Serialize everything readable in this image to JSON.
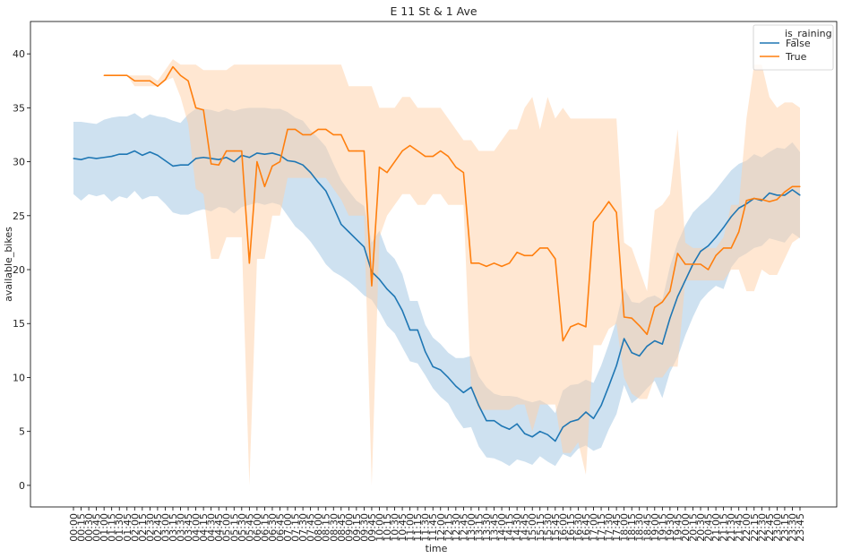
{
  "chart_data": {
    "type": "line",
    "title": "E 11 St & 1 Ave",
    "xlabel": "time",
    "ylabel": "available_bikes",
    "ylim": [
      -2,
      43
    ],
    "y_ticks": [
      0,
      5,
      10,
      15,
      20,
      25,
      30,
      35,
      40
    ],
    "grid": false,
    "legend_title": "is_raining",
    "legend_position": "top-right",
    "categories": [
      "00:00",
      "00:15",
      "00:30",
      "00:45",
      "01:00",
      "01:15",
      "01:30",
      "01:45",
      "02:00",
      "02:15",
      "02:30",
      "02:45",
      "03:00",
      "03:15",
      "03:30",
      "03:45",
      "04:00",
      "04:15",
      "04:30",
      "04:45",
      "05:00",
      "05:15",
      "05:30",
      "05:45",
      "06:00",
      "06:15",
      "06:30",
      "06:45",
      "07:00",
      "07:15",
      "07:30",
      "07:45",
      "08:00",
      "08:15",
      "08:30",
      "08:45",
      "09:00",
      "09:15",
      "09:30",
      "09:45",
      "10:00",
      "10:15",
      "10:30",
      "10:45",
      "11:00",
      "11:15",
      "11:30",
      "11:45",
      "12:00",
      "12:15",
      "12:30",
      "12:45",
      "13:00",
      "13:15",
      "13:30",
      "13:45",
      "14:00",
      "14:15",
      "14:30",
      "14:45",
      "15:00",
      "15:15",
      "15:30",
      "15:45",
      "16:00",
      "16:15",
      "16:30",
      "16:45",
      "17:00",
      "17:15",
      "17:30",
      "17:45",
      "18:00",
      "18:15",
      "18:30",
      "18:45",
      "19:00",
      "19:15",
      "19:30",
      "19:45",
      "20:00",
      "20:15",
      "20:30",
      "20:45",
      "21:00",
      "21:15",
      "21:30",
      "21:45",
      "22:00",
      "22:15",
      "22:30",
      "22:45",
      "23:00",
      "23:15",
      "23:30",
      "23:45"
    ],
    "series": [
      {
        "name": "False",
        "color": "#1f77b4",
        "band_color": "#a6c8e3",
        "values": [
          30.3,
          30.2,
          30.4,
          30.3,
          30.4,
          30.5,
          30.7,
          30.7,
          31.0,
          30.6,
          30.9,
          30.6,
          30.1,
          29.6,
          29.7,
          29.7,
          30.3,
          30.4,
          30.3,
          30.2,
          30.4,
          30.0,
          30.6,
          30.4,
          30.8,
          30.7,
          30.8,
          30.6,
          30.1,
          30.0,
          29.7,
          29.0,
          28.1,
          27.3,
          25.8,
          24.2,
          23.5,
          22.8,
          22.1,
          19.8,
          19.1,
          18.2,
          17.5,
          16.2,
          14.4,
          14.4,
          12.4,
          11.0,
          10.7,
          10.0,
          9.2,
          8.6,
          9.1,
          7.4,
          6.0,
          6.0,
          5.5,
          5.2,
          5.7,
          4.8,
          4.5,
          5.0,
          4.7,
          4.1,
          5.4,
          5.9,
          6.1,
          6.8,
          6.2,
          7.4,
          9.2,
          11.1,
          13.6,
          12.3,
          12.0,
          12.9,
          13.4,
          13.1,
          15.5,
          17.5,
          19.0,
          20.5,
          21.7,
          22.2,
          23.0,
          23.9,
          24.9,
          25.7,
          26.1,
          26.6,
          26.4,
          27.1,
          26.9,
          26.9,
          27.4,
          26.9
        ],
        "lower": [
          27.0,
          26.4,
          27.0,
          26.8,
          27.0,
          26.3,
          26.8,
          26.6,
          27.3,
          26.5,
          26.8,
          26.8,
          26.1,
          25.3,
          25.1,
          25.1,
          25.4,
          25.6,
          25.4,
          25.8,
          25.7,
          25.2,
          25.8,
          26.0,
          26.2,
          26.0,
          26.2,
          26.0,
          25.0,
          24.0,
          23.4,
          22.6,
          21.6,
          20.5,
          19.8,
          19.4,
          18.9,
          18.3,
          17.6,
          17.2,
          16.1,
          14.8,
          14.1,
          12.8,
          11.5,
          11.3,
          10.2,
          9.0,
          8.2,
          7.6,
          6.3,
          5.3,
          5.4,
          3.6,
          2.6,
          2.5,
          2.2,
          1.8,
          2.4,
          2.2,
          1.9,
          2.7,
          2.2,
          1.8,
          2.9,
          2.6,
          3.4,
          3.7,
          3.2,
          3.5,
          5.2,
          6.6,
          9.3,
          7.6,
          8.2,
          9.0,
          9.7,
          8.1,
          10.5,
          11.9,
          13.9,
          15.6,
          17.1,
          17.9,
          18.5,
          18.2,
          20.2,
          21.1,
          21.5,
          22.0,
          22.2,
          22.9,
          22.7,
          22.5,
          23.4,
          22.9
        ],
        "upper": [
          33.7,
          33.7,
          33.6,
          33.5,
          33.9,
          34.1,
          34.2,
          34.2,
          34.5,
          34.0,
          34.4,
          34.2,
          34.1,
          33.8,
          33.6,
          34.4,
          34.9,
          34.9,
          34.8,
          34.6,
          34.9,
          34.7,
          34.9,
          35.0,
          35.0,
          35.0,
          34.9,
          34.9,
          34.6,
          34.1,
          33.8,
          32.9,
          32.2,
          31.4,
          29.8,
          28.3,
          27.3,
          26.4,
          25.9,
          22.5,
          23.6,
          21.7,
          21.0,
          19.6,
          17.1,
          17.1,
          14.9,
          13.7,
          13.1,
          12.3,
          11.8,
          11.8,
          12.0,
          10.1,
          9.1,
          8.5,
          8.3,
          8.3,
          8.2,
          7.9,
          7.7,
          7.9,
          7.5,
          6.7,
          8.8,
          9.3,
          9.4,
          9.8,
          9.5,
          11.1,
          13.1,
          15.3,
          18.3,
          17.0,
          16.9,
          17.4,
          17.6,
          17.2,
          20.3,
          22.5,
          24.1,
          25.3,
          26.0,
          26.6,
          27.4,
          28.3,
          29.2,
          29.8,
          30.1,
          30.7,
          30.4,
          30.9,
          31.3,
          31.2,
          31.8,
          30.9
        ]
      },
      {
        "name": "True",
        "color": "#ff7f0e",
        "band_color": "#ffd0a6",
        "values": [
          null,
          null,
          null,
          null,
          38.0,
          38.0,
          38.0,
          38.0,
          37.5,
          37.5,
          37.5,
          37.0,
          37.6,
          38.8,
          38.0,
          37.5,
          35.0,
          34.8,
          29.8,
          29.7,
          31.0,
          31.0,
          31.0,
          20.6,
          30.0,
          27.7,
          29.6,
          30.0,
          33.0,
          33.0,
          32.5,
          32.5,
          33.0,
          33.0,
          32.5,
          32.5,
          31.0,
          31.0,
          31.0,
          18.5,
          29.5,
          29.0,
          30.0,
          31.0,
          31.5,
          31.0,
          30.5,
          30.5,
          31.0,
          30.5,
          29.5,
          29.0,
          20.6,
          20.6,
          20.3,
          20.6,
          20.3,
          20.6,
          21.6,
          21.3,
          21.3,
          22.0,
          22.0,
          21.0,
          13.4,
          14.7,
          15.0,
          14.7,
          24.4,
          25.3,
          26.3,
          25.3,
          15.6,
          15.5,
          14.8,
          14.0,
          16.5,
          17.0,
          18.0,
          21.5,
          20.5,
          20.5,
          20.5,
          20.0,
          21.3,
          22.0,
          22.0,
          23.5,
          26.4,
          26.6,
          26.5,
          26.3,
          26.5,
          27.2,
          27.7,
          27.7
        ],
        "lower": [
          null,
          null,
          null,
          null,
          38.0,
          38.0,
          38.0,
          38.0,
          37.0,
          37.0,
          37.0,
          37.0,
          37.5,
          37.8,
          36.0,
          33.5,
          27.5,
          27.0,
          21.0,
          21.0,
          23.0,
          23.0,
          23.0,
          0.0,
          21.0,
          21.0,
          25.0,
          25.0,
          28.5,
          28.5,
          28.5,
          28.5,
          28.5,
          28.5,
          27.5,
          26.5,
          25.0,
          25.0,
          25.0,
          0.0,
          23.0,
          25.0,
          26.0,
          27.0,
          27.0,
          26.0,
          26.0,
          27.0,
          27.0,
          26.0,
          26.0,
          26.0,
          9.0,
          7.0,
          7.0,
          7.0,
          7.0,
          7.0,
          7.5,
          7.5,
          5.0,
          7.5,
          7.5,
          7.5,
          3.0,
          3.0,
          4.0,
          1.0,
          13.0,
          13.0,
          14.5,
          15.0,
          10.0,
          8.5,
          8.0,
          8.0,
          10.0,
          10.0,
          11.0,
          11.0,
          19.0,
          19.0,
          19.0,
          19.0,
          19.0,
          19.0,
          20.0,
          20.0,
          18.0,
          18.0,
          20.0,
          19.5,
          19.5,
          21.0,
          22.5,
          23.0
        ],
        "upper": [
          null,
          null,
          null,
          null,
          38.0,
          38.0,
          38.0,
          38.0,
          38.0,
          38.0,
          38.0,
          37.5,
          38.5,
          39.5,
          39.0,
          39.0,
          39.0,
          38.5,
          38.5,
          38.5,
          38.5,
          39.0,
          39.0,
          39.0,
          39.0,
          39.0,
          39.0,
          39.0,
          39.0,
          39.0,
          39.0,
          39.0,
          39.0,
          39.0,
          39.0,
          39.0,
          37.0,
          37.0,
          37.0,
          37.0,
          35.0,
          35.0,
          35.0,
          36.0,
          36.0,
          35.0,
          35.0,
          35.0,
          35.0,
          34.0,
          33.0,
          32.0,
          32.0,
          31.0,
          31.0,
          31.0,
          32.0,
          33.0,
          33.0,
          35.0,
          36.0,
          33.0,
          36.0,
          34.0,
          35.0,
          34.0,
          34.0,
          34.0,
          34.0,
          34.0,
          34.0,
          34.0,
          22.5,
          22.0,
          20.0,
          18.0,
          25.5,
          26.0,
          27.0,
          33.0,
          22.5,
          22.0,
          22.0,
          22.0,
          22.0,
          23.0,
          26.0,
          26.0,
          34.0,
          39.0,
          39.0,
          36.0,
          35.0,
          35.5,
          35.5,
          35.0
        ]
      }
    ]
  }
}
